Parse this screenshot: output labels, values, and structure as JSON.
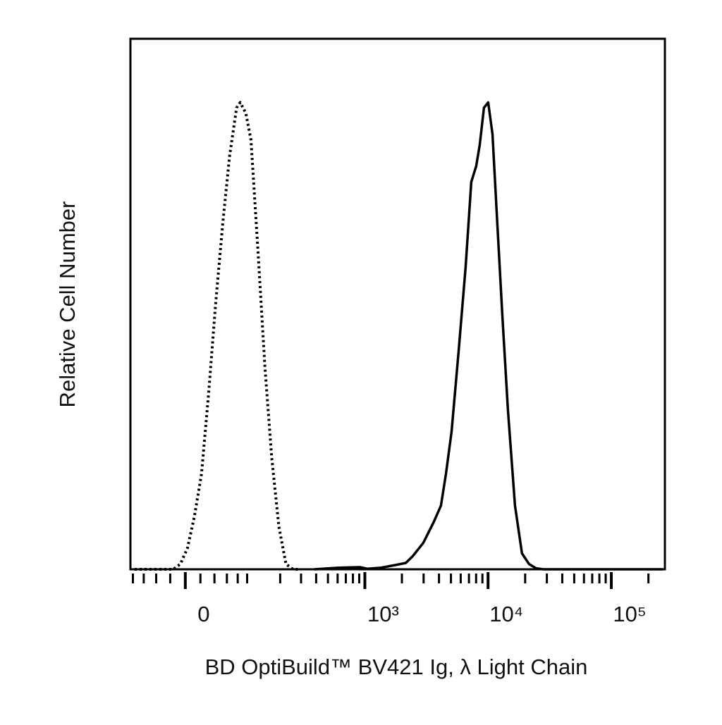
{
  "chart_data": {
    "type": "line",
    "xlabel": "BD OptiBuild™ BV421 Ig, λ Light Chain",
    "ylabel": "Relative Cell Number",
    "xscale": "biexponential",
    "xlim": [
      -85,
      272000
    ],
    "ylim": [
      0,
      100
    ],
    "xticks": [
      0,
      {
        "value": 1000,
        "label": "10³"
      },
      {
        "value": 10000,
        "label": "10⁴"
      },
      {
        "value": 100000,
        "label": "10⁵"
      }
    ],
    "xminorticks": [
      -80,
      -60,
      -40,
      -20,
      20,
      40,
      60,
      80,
      100,
      200,
      300,
      400,
      500,
      600,
      700,
      800,
      900,
      2000,
      3000,
      4000,
      5000,
      6000,
      7000,
      8000,
      9000,
      20000,
      30000,
      40000,
      50000,
      60000,
      70000,
      80000,
      90000,
      200000
    ],
    "series": [
      {
        "color": "#000000",
        "style": "dotted",
        "x": [
          -76.6,
          -15.8,
          -6.5,
          2.8,
          12.0,
          21.5,
          31.4,
          41.8,
          52.9,
          64.8,
          77.9,
          85,
          97,
          109,
          127,
          147,
          169,
          195,
          224,
          257,
          295
        ],
        "values": [
          0,
          0,
          1,
          4,
          10,
          18,
          33,
          50,
          65,
          78,
          87,
          88,
          86,
          81,
          60,
          38,
          21,
          8,
          1,
          0,
          0
        ]
      },
      {
        "color": "#000000",
        "style": "solid",
        "x": [
          386,
          614,
          913,
          1043,
          1357,
          1765,
          2149,
          2451,
          2986,
          3641,
          4150,
          4553,
          5060,
          5770,
          6580,
          7313,
          8015,
          8560,
          9268,
          10030,
          10860,
          11900,
          13050,
          14490,
          16530,
          18840,
          21490,
          24500,
          27930,
          261800
        ],
        "values": [
          0,
          0.3,
          0.4,
          0.1,
          0.3,
          0.8,
          1.2,
          2.5,
          5,
          9,
          12,
          18,
          26,
          41,
          57,
          73,
          76,
          80,
          87,
          88,
          82,
          65,
          48,
          30,
          12,
          3,
          1,
          0.2,
          0,
          0
        ]
      }
    ]
  }
}
